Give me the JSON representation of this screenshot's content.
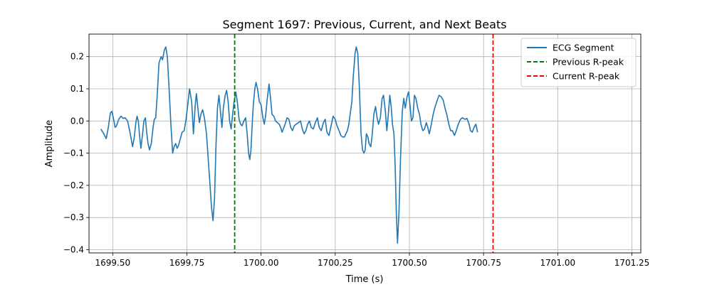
{
  "chart_data": {
    "type": "line",
    "title": "Segment 1697: Previous, Current, and Next Beats",
    "xlabel": "Time (s)",
    "ylabel": "Amplitude",
    "xlim": [
      1699.42,
      1701.28
    ],
    "ylim": [
      -0.41,
      0.27
    ],
    "grid": true,
    "legend_position": "top-right",
    "x_ticks": [
      1699.5,
      1699.75,
      1700.0,
      1700.25,
      1700.5,
      1700.75,
      1701.0,
      1701.25
    ],
    "x_tick_labels": [
      "1699.50",
      "1699.75",
      "1700.00",
      "1700.25",
      "1700.50",
      "1700.75",
      "1701.00",
      "1701.25"
    ],
    "y_ticks": [
      0.2,
      0.1,
      0.0,
      -0.1,
      -0.2,
      -0.3,
      -0.4
    ],
    "y_tick_labels": [
      "0.2",
      "0.1",
      "0.0",
      "−0.1",
      "−0.2",
      "−0.3",
      "−0.4"
    ],
    "series": [
      {
        "name": "ECG Segment",
        "color": "#1f77b4",
        "points": [
          [
            1699.46,
            -0.025
          ],
          [
            1699.47,
            -0.04
          ],
          [
            1699.478,
            -0.055
          ],
          [
            1699.485,
            -0.02
          ],
          [
            1699.492,
            0.025
          ],
          [
            1699.497,
            0.03
          ],
          [
            1699.503,
            0.005
          ],
          [
            1699.508,
            -0.02
          ],
          [
            1699.513,
            -0.015
          ],
          [
            1699.52,
            0.005
          ],
          [
            1699.528,
            0.015
          ],
          [
            1699.535,
            0.008
          ],
          [
            1699.542,
            0.01
          ],
          [
            1699.55,
            0.0
          ],
          [
            1699.557,
            -0.03
          ],
          [
            1699.563,
            -0.06
          ],
          [
            1699.567,
            -0.08
          ],
          [
            1699.572,
            -0.055
          ],
          [
            1699.578,
            -0.005
          ],
          [
            1699.582,
            0.015
          ],
          [
            1699.586,
            0.0
          ],
          [
            1699.59,
            -0.04
          ],
          [
            1699.595,
            -0.085
          ],
          [
            1699.6,
            -0.045
          ],
          [
            1699.605,
            0.0
          ],
          [
            1699.61,
            0.01
          ],
          [
            1699.614,
            -0.03
          ],
          [
            1699.619,
            -0.07
          ],
          [
            1699.624,
            -0.09
          ],
          [
            1699.63,
            -0.07
          ],
          [
            1699.636,
            -0.02
          ],
          [
            1699.64,
            0.005
          ],
          [
            1699.645,
            0.01
          ],
          [
            1699.65,
            0.08
          ],
          [
            1699.656,
            0.18
          ],
          [
            1699.663,
            0.2
          ],
          [
            1699.668,
            0.19
          ],
          [
            1699.674,
            0.22
          ],
          [
            1699.679,
            0.23
          ],
          [
            1699.684,
            0.2
          ],
          [
            1699.69,
            0.1
          ],
          [
            1699.696,
            -0.01
          ],
          [
            1699.702,
            -0.1
          ],
          [
            1699.707,
            -0.08
          ],
          [
            1699.712,
            -0.07
          ],
          [
            1699.717,
            -0.085
          ],
          [
            1699.722,
            -0.075
          ],
          [
            1699.728,
            -0.055
          ],
          [
            1699.734,
            -0.035
          ],
          [
            1699.741,
            -0.03
          ],
          [
            1699.747,
            0.005
          ],
          [
            1699.753,
            0.05
          ],
          [
            1699.759,
            0.1
          ],
          [
            1699.766,
            0.06
          ],
          [
            1699.772,
            -0.04
          ],
          [
            1699.778,
            0.05
          ],
          [
            1699.782,
            0.085
          ],
          [
            1699.787,
            0.04
          ],
          [
            1699.792,
            -0.005
          ],
          [
            1699.797,
            0.02
          ],
          [
            1699.803,
            0.035
          ],
          [
            1699.809,
            0.01
          ],
          [
            1699.816,
            -0.04
          ],
          [
            1699.822,
            -0.12
          ],
          [
            1699.828,
            -0.2
          ],
          [
            1699.833,
            -0.27
          ],
          [
            1699.838,
            -0.31
          ],
          [
            1699.843,
            -0.24
          ],
          [
            1699.848,
            -0.08
          ],
          [
            1699.853,
            0.04
          ],
          [
            1699.858,
            0.08
          ],
          [
            1699.863,
            0.03
          ],
          [
            1699.868,
            -0.02
          ],
          [
            1699.873,
            0.04
          ],
          [
            1699.879,
            0.08
          ],
          [
            1699.884,
            0.095
          ],
          [
            1699.889,
            0.06
          ],
          [
            1699.894,
            0.0
          ],
          [
            1699.899,
            -0.025
          ],
          [
            1699.904,
            0.02
          ],
          [
            1699.909,
            0.06
          ],
          [
            1699.915,
            0.09
          ],
          [
            1699.92,
            0.06
          ],
          [
            1699.926,
            0.005
          ],
          [
            1699.931,
            -0.01
          ],
          [
            1699.936,
            -0.015
          ],
          [
            1699.942,
            0.0
          ],
          [
            1699.948,
            0.01
          ],
          [
            1699.953,
            -0.04
          ],
          [
            1699.958,
            -0.1
          ],
          [
            1699.962,
            -0.12
          ],
          [
            1699.966,
            -0.09
          ],
          [
            1699.97,
            -0.01
          ],
          [
            1699.974,
            0.05
          ],
          [
            1699.979,
            0.1
          ],
          [
            1699.983,
            0.12
          ],
          [
            1699.988,
            0.1
          ],
          [
            1699.994,
            0.06
          ],
          [
            1700.0,
            0.05
          ],
          [
            1700.006,
            0.01
          ],
          [
            1700.011,
            -0.01
          ],
          [
            1700.016,
            0.02
          ],
          [
            1700.021,
            0.07
          ],
          [
            1700.027,
            0.115
          ],
          [
            1700.032,
            0.07
          ],
          [
            1700.037,
            0.02
          ],
          [
            1700.043,
            0.015
          ],
          [
            1700.049,
            0.0
          ],
          [
            1700.055,
            -0.005
          ],
          [
            1700.061,
            -0.01
          ],
          [
            1700.066,
            -0.02
          ],
          [
            1700.071,
            -0.035
          ],
          [
            1700.075,
            -0.025
          ],
          [
            1700.081,
            -0.01
          ],
          [
            1700.088,
            0.01
          ],
          [
            1700.094,
            0.005
          ],
          [
            1700.1,
            -0.02
          ],
          [
            1700.106,
            -0.03
          ],
          [
            1700.112,
            -0.015
          ],
          [
            1700.118,
            -0.01
          ],
          [
            1700.126,
            -0.005
          ],
          [
            1700.133,
            0.0
          ],
          [
            1700.139,
            -0.025
          ],
          [
            1700.145,
            -0.04
          ],
          [
            1700.151,
            -0.03
          ],
          [
            1700.157,
            -0.01
          ],
          [
            1700.163,
            0.0
          ],
          [
            1700.169,
            -0.02
          ],
          [
            1700.176,
            -0.025
          ],
          [
            1700.183,
            -0.005
          ],
          [
            1700.19,
            0.01
          ],
          [
            1700.196,
            -0.02
          ],
          [
            1700.203,
            -0.03
          ],
          [
            1700.21,
            -0.005
          ],
          [
            1700.216,
            0.005
          ],
          [
            1700.222,
            -0.035
          ],
          [
            1700.229,
            -0.045
          ],
          [
            1700.236,
            -0.015
          ],
          [
            1700.243,
            0.015
          ],
          [
            1700.25,
            0.005
          ],
          [
            1700.256,
            -0.015
          ],
          [
            1700.263,
            -0.03
          ],
          [
            1700.269,
            -0.045
          ],
          [
            1700.275,
            -0.05
          ],
          [
            1700.281,
            -0.05
          ],
          [
            1700.286,
            -0.04
          ],
          [
            1700.291,
            -0.03
          ],
          [
            1700.296,
            -0.01
          ],
          [
            1700.3,
            0.02
          ],
          [
            1700.306,
            0.06
          ],
          [
            1700.311,
            0.14
          ],
          [
            1700.317,
            0.21
          ],
          [
            1700.321,
            0.23
          ],
          [
            1700.326,
            0.21
          ],
          [
            1700.331,
            0.11
          ],
          [
            1700.337,
            -0.04
          ],
          [
            1700.342,
            -0.09
          ],
          [
            1700.347,
            -0.1
          ],
          [
            1700.351,
            -0.09
          ],
          [
            1700.355,
            -0.04
          ],
          [
            1700.36,
            -0.05
          ],
          [
            1700.364,
            -0.07
          ],
          [
            1700.37,
            -0.08
          ],
          [
            1700.375,
            -0.04
          ],
          [
            1700.38,
            0.02
          ],
          [
            1700.386,
            0.045
          ],
          [
            1700.391,
            0.01
          ],
          [
            1700.396,
            -0.01
          ],
          [
            1700.402,
            0.01
          ],
          [
            1700.408,
            0.07
          ],
          [
            1700.413,
            0.08
          ],
          [
            1700.419,
            0.03
          ],
          [
            1700.424,
            -0.03
          ],
          [
            1700.428,
            0.01
          ],
          [
            1700.434,
            0.08
          ],
          [
            1700.439,
            0.04
          ],
          [
            1700.443,
            -0.01
          ],
          [
            1700.448,
            -0.04
          ],
          [
            1700.452,
            -0.14
          ],
          [
            1700.456,
            -0.29
          ],
          [
            1700.46,
            -0.38
          ],
          [
            1700.465,
            -0.28
          ],
          [
            1700.47,
            -0.12
          ],
          [
            1700.476,
            0.03
          ],
          [
            1700.481,
            0.07
          ],
          [
            1700.486,
            0.04
          ],
          [
            1700.492,
            0.075
          ],
          [
            1700.497,
            0.09
          ],
          [
            1700.502,
            0.05
          ],
          [
            1700.507,
            0.0
          ],
          [
            1700.512,
            0.01
          ],
          [
            1700.517,
            0.08
          ],
          [
            1700.522,
            0.07
          ],
          [
            1700.528,
            0.04
          ],
          [
            1700.534,
            0.02
          ],
          [
            1700.539,
            -0.01
          ],
          [
            1700.545,
            -0.03
          ],
          [
            1700.551,
            -0.025
          ],
          [
            1700.557,
            -0.005
          ],
          [
            1700.562,
            -0.02
          ],
          [
            1700.567,
            -0.04
          ],
          [
            1700.573,
            -0.015
          ],
          [
            1700.58,
            0.02
          ],
          [
            1700.587,
            0.045
          ],
          [
            1700.594,
            0.065
          ],
          [
            1700.6,
            0.08
          ],
          [
            1700.607,
            0.075
          ],
          [
            1700.614,
            0.065
          ],
          [
            1700.62,
            0.04
          ],
          [
            1700.626,
            0.02
          ],
          [
            1700.633,
            -0.01
          ],
          [
            1700.639,
            -0.03
          ],
          [
            1700.645,
            -0.03
          ],
          [
            1700.652,
            -0.045
          ],
          [
            1700.658,
            -0.03
          ],
          [
            1700.665,
            -0.01
          ],
          [
            1700.672,
            0.005
          ],
          [
            1700.679,
            0.01
          ],
          [
            1700.687,
            0.005
          ],
          [
            1700.694,
            0.008
          ],
          [
            1700.701,
            -0.01
          ],
          [
            1700.706,
            -0.03
          ],
          [
            1700.712,
            -0.035
          ],
          [
            1700.718,
            -0.02
          ],
          [
            1700.724,
            -0.01
          ],
          [
            1700.73,
            -0.035
          ]
        ]
      }
    ],
    "vlines": [
      {
        "name": "Previous R-peak",
        "x": 1699.911,
        "color": "#008000"
      },
      {
        "name": "Current R-peak",
        "x": 1700.782,
        "color": "#ff0000"
      }
    ]
  }
}
